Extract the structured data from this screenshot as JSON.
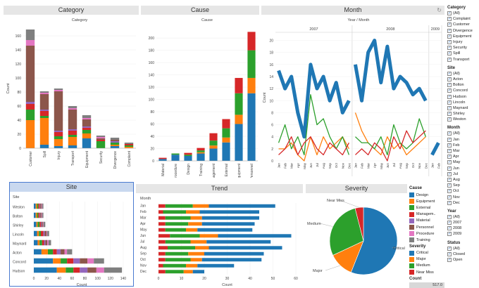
{
  "titles": {
    "category": "Category",
    "cause": "Cause",
    "month": "Month",
    "site": "Site",
    "trend": "Trend",
    "severity": "Severity"
  },
  "category_chart": {
    "subtitle": "Category",
    "ylabel": "Count",
    "ylim": [
      0,
      170
    ],
    "yticks": [
      0,
      20,
      40,
      60,
      80,
      100,
      120,
      140,
      160
    ],
    "categories": [
      "Customer",
      "Spill",
      "Injury",
      "Transport",
      "Equipment",
      "Security",
      "Divergence",
      "Complaint"
    ],
    "series": [
      {
        "name": "Design",
        "color": "#1f77b4",
        "values": [
          0,
          5,
          3,
          4,
          14,
          0,
          3,
          0
        ]
      },
      {
        "name": "Equipment",
        "color": "#ff7f0e",
        "values": [
          40,
          38,
          10,
          12,
          7,
          0,
          2,
          2
        ]
      },
      {
        "name": "External",
        "color": "#2ca02c",
        "values": [
          15,
          3,
          4,
          3,
          5,
          10,
          3,
          2
        ]
      },
      {
        "name": "Management",
        "color": "#d62728",
        "values": [
          8,
          7,
          6,
          6,
          3,
          2,
          0,
          2
        ]
      },
      {
        "name": "Material",
        "color": "#9467bd",
        "values": [
          3,
          2,
          2,
          2,
          2,
          0,
          2,
          0
        ]
      },
      {
        "name": "Personnel",
        "color": "#8c564b",
        "values": [
          80,
          22,
          56,
          28,
          10,
          2,
          2,
          0
        ]
      },
      {
        "name": "Procedure",
        "color": "#e377c2",
        "values": [
          8,
          2,
          2,
          2,
          2,
          2,
          0,
          0
        ]
      },
      {
        "name": "Training",
        "color": "#7f7f7f",
        "values": [
          15,
          2,
          2,
          3,
          4,
          2,
          3,
          2
        ]
      }
    ]
  },
  "cause_chart": {
    "subtitle": "Cause",
    "ylim": [
      0,
      215
    ],
    "yticks": [
      0,
      20,
      40,
      60,
      80,
      100,
      120,
      140,
      160,
      180,
      200
    ],
    "categories": [
      "Material",
      "Procedure",
      "Design",
      "Training",
      "Management",
      "External",
      "Equipment",
      "Personnel"
    ],
    "series": [
      {
        "name": "Design",
        "color": "#1f77b4",
        "values": [
          3,
          10,
          8,
          12,
          20,
          30,
          60,
          110
        ]
      },
      {
        "name": "Equipment",
        "color": "#ff7f0e",
        "values": [
          0,
          0,
          0,
          2,
          5,
          8,
          15,
          25
        ]
      },
      {
        "name": "External",
        "color": "#2ca02c",
        "values": [
          0,
          2,
          2,
          3,
          8,
          15,
          35,
          45
        ]
      },
      {
        "name": "Management",
        "color": "#d62728",
        "values": [
          2,
          0,
          3,
          4,
          12,
          15,
          25,
          30
        ]
      }
    ]
  },
  "month_chart": {
    "subtitle": "Year / Month",
    "ylabel": "Count",
    "ylim": [
      0,
      21
    ],
    "yticks": [
      0,
      2,
      4,
      6,
      8,
      10,
      12,
      14,
      16,
      18,
      20
    ],
    "years": [
      "2007",
      "2008",
      "2009"
    ],
    "month_labels": [
      "Jan",
      "Feb",
      "Mar",
      "Apr",
      "May",
      "Jun",
      "Jul",
      "Aug",
      "Sep",
      "Oct",
      "Nov",
      "Dec"
    ],
    "month_labels_2009": [
      "Jan",
      "Feb"
    ],
    "series": [
      {
        "name": "Critical",
        "color": "#1f77b4",
        "width": 5,
        "values": [
          15,
          12,
          14,
          8,
          4,
          16,
          12,
          14,
          10,
          13,
          8,
          10,
          16,
          10,
          18,
          20,
          13,
          19,
          12,
          14,
          13,
          11,
          12,
          10,
          1,
          3
        ]
      },
      {
        "name": "Major",
        "color": "#ff7f0e",
        "width": 1.3,
        "values": [
          2,
          2,
          3,
          1,
          0,
          4,
          1,
          4,
          2,
          3,
          4,
          2,
          8,
          5,
          3,
          2,
          1,
          4,
          2,
          3,
          1,
          2,
          3,
          4,
          null,
          null
        ]
      },
      {
        "name": "Medium",
        "color": "#2ca02c",
        "width": 1.3,
        "values": [
          3,
          6,
          2,
          4,
          1,
          11,
          6,
          7,
          4,
          2,
          4,
          1,
          4,
          3,
          3,
          2,
          4,
          1,
          6,
          3,
          2,
          3,
          7,
          4,
          null,
          null
        ]
      },
      {
        "name": "Near Miss",
        "color": "#d62728",
        "width": 1.3,
        "values": [
          1,
          2,
          4,
          1,
          3,
          4,
          2,
          1,
          3,
          2,
          1,
          3,
          1,
          2,
          1,
          3,
          2,
          0,
          4,
          2,
          5,
          3,
          4,
          5,
          null,
          null
        ]
      }
    ]
  },
  "site_chart": {
    "subtitle": "Site",
    "xlabel": "Count",
    "xlim": [
      0,
      150
    ],
    "xticks": [
      0,
      20,
      40,
      60,
      80,
      100,
      120,
      140
    ],
    "categories": [
      "Weston",
      "Bolton",
      "Shirley",
      "Lincoln",
      "Maynard",
      "Acton",
      "Concord",
      "Hudson"
    ],
    "series": [
      {
        "name": "Design",
        "color": "#1f77b4",
        "values": [
          3,
          3,
          4,
          5,
          6,
          12,
          30,
          36
        ]
      },
      {
        "name": "Equipment",
        "color": "#ff7f0e",
        "values": [
          2,
          2,
          2,
          3,
          3,
          10,
          12,
          14
        ]
      },
      {
        "name": "External",
        "color": "#2ca02c",
        "values": [
          2,
          2,
          3,
          3,
          4,
          8,
          10,
          12
        ]
      },
      {
        "name": "Management",
        "color": "#d62728",
        "values": [
          2,
          2,
          2,
          4,
          3,
          6,
          10,
          10
        ]
      },
      {
        "name": "Material",
        "color": "#9467bd",
        "values": [
          1,
          1,
          1,
          2,
          2,
          6,
          10,
          12
        ]
      },
      {
        "name": "Personnel",
        "color": "#8c564b",
        "values": [
          2,
          2,
          2,
          3,
          3,
          6,
          12,
          14
        ]
      },
      {
        "name": "Procedure",
        "color": "#e377c2",
        "values": [
          1,
          1,
          1,
          1,
          2,
          4,
          10,
          12
        ]
      },
      {
        "name": "Training",
        "color": "#7f7f7f",
        "values": [
          2,
          2,
          3,
          3,
          4,
          8,
          16,
          28
        ]
      }
    ]
  },
  "trend_chart": {
    "subtitle": "Month",
    "xlabel": "Count",
    "xlim": [
      0,
      60
    ],
    "xticks": [
      0,
      10,
      20,
      30,
      40,
      50,
      60
    ],
    "categories": [
      "Jan",
      "Feb",
      "Mar",
      "Apr",
      "May",
      "Jun",
      "Jul",
      "Aug",
      "Sep",
      "Oct",
      "Nov",
      "Dec"
    ],
    "series": [
      {
        "name": "Near Miss",
        "color": "#d62728",
        "values": [
          3,
          2,
          3,
          3,
          3,
          5,
          3,
          4,
          3,
          3,
          2,
          3
        ]
      },
      {
        "name": "Medium",
        "color": "#2ca02c",
        "values": [
          12,
          10,
          11,
          10,
          9,
          13,
          11,
          12,
          10,
          11,
          10,
          8
        ]
      },
      {
        "name": "Major",
        "color": "#ff7f0e",
        "values": [
          7,
          6,
          5,
          6,
          5,
          8,
          7,
          6,
          7,
          5,
          5,
          4
        ]
      },
      {
        "name": "Critical",
        "color": "#1f77b4",
        "values": [
          29,
          26,
          25,
          23,
          24,
          32,
          28,
          32,
          26,
          26,
          16,
          5
        ]
      }
    ]
  },
  "severity_chart": {
    "type": "pie",
    "labels": [
      "Critical",
      "Major",
      "Medium",
      "Near Miss"
    ],
    "values": [
      56,
      12,
      28,
      4
    ],
    "colors": [
      "#1f77b4",
      "#ff7f0e",
      "#2ca02c",
      "#d62728"
    ]
  },
  "legend": {
    "cause_head": "Cause",
    "cause_items": [
      {
        "label": "Design",
        "color": "#1f77b4"
      },
      {
        "label": "Equipment",
        "color": "#ff7f0e"
      },
      {
        "label": "External",
        "color": "#2ca02c"
      },
      {
        "label": "Managem..",
        "color": "#d62728"
      },
      {
        "label": "Material",
        "color": "#9467bd"
      },
      {
        "label": "Personnel",
        "color": "#8c564b"
      },
      {
        "label": "Procedure",
        "color": "#e377c2"
      },
      {
        "label": "Training",
        "color": "#7f7f7f"
      }
    ],
    "severity_head": "Severity",
    "severity_items": [
      {
        "label": "Critical",
        "color": "#1f77b4"
      },
      {
        "label": "Major",
        "color": "#ff7f0e"
      },
      {
        "label": "Medium",
        "color": "#2ca02c"
      },
      {
        "label": "Near Miss",
        "color": "#d62728"
      }
    ]
  },
  "count_box": {
    "label": "Count",
    "value": "517.0"
  },
  "filters": [
    {
      "head": "Category",
      "items": [
        "(All)",
        "Complaint",
        "Customer",
        "Divergence",
        "Equipment",
        "Injury",
        "Security",
        "Spill",
        "Transport"
      ]
    },
    {
      "head": "Site",
      "items": [
        "(All)",
        "Acton",
        "Bolton",
        "Concord",
        "Hudson",
        "Lincoln",
        "Maynard",
        "Shirley",
        "Weston"
      ]
    },
    {
      "head": "Month",
      "items": [
        "(All)",
        "Jan",
        "Feb",
        "Mar",
        "Apr",
        "May",
        "Jun",
        "Jul",
        "Aug",
        "Sep",
        "Oct",
        "Nov",
        "Dec"
      ]
    },
    {
      "head": "Year",
      "items": [
        "(All)",
        "2007",
        "2008",
        "2009"
      ]
    },
    {
      "head": "Status",
      "items": [
        "(All)",
        "Closed",
        "Open"
      ]
    }
  ]
}
